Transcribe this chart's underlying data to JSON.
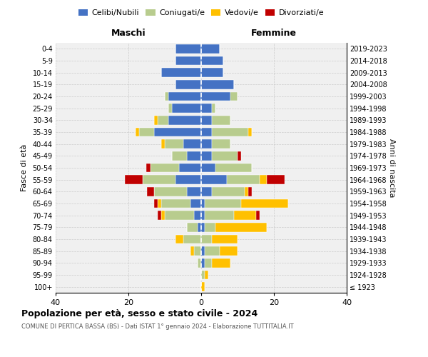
{
  "age_groups": [
    "100+",
    "95-99",
    "90-94",
    "85-89",
    "80-84",
    "75-79",
    "70-74",
    "65-69",
    "60-64",
    "55-59",
    "50-54",
    "45-49",
    "40-44",
    "35-39",
    "30-34",
    "25-29",
    "20-24",
    "15-19",
    "10-14",
    "5-9",
    "0-4"
  ],
  "birth_years": [
    "≤ 1923",
    "1924-1928",
    "1929-1933",
    "1934-1938",
    "1939-1943",
    "1944-1948",
    "1949-1953",
    "1954-1958",
    "1959-1963",
    "1964-1968",
    "1969-1973",
    "1974-1978",
    "1979-1983",
    "1984-1988",
    "1989-1993",
    "1994-1998",
    "1999-2003",
    "2004-2008",
    "2009-2013",
    "2014-2018",
    "2019-2023"
  ],
  "maschi": {
    "celibi": [
      0,
      0,
      0,
      0,
      0,
      1,
      2,
      3,
      4,
      7,
      6,
      4,
      5,
      13,
      9,
      8,
      9,
      7,
      11,
      7,
      7
    ],
    "coniugati": [
      0,
      0,
      1,
      2,
      5,
      3,
      8,
      8,
      9,
      9,
      8,
      4,
      5,
      4,
      3,
      1,
      1,
      0,
      0,
      0,
      0
    ],
    "vedovi": [
      0,
      0,
      0,
      1,
      2,
      0,
      1,
      1,
      0,
      0,
      0,
      0,
      1,
      1,
      1,
      0,
      0,
      0,
      0,
      0,
      0
    ],
    "divorziati": [
      0,
      0,
      0,
      0,
      0,
      0,
      1,
      1,
      2,
      5,
      1,
      0,
      0,
      0,
      0,
      0,
      0,
      0,
      0,
      0,
      0
    ]
  },
  "femmine": {
    "nubili": [
      0,
      0,
      1,
      1,
      0,
      1,
      1,
      1,
      3,
      7,
      4,
      3,
      3,
      3,
      3,
      3,
      8,
      9,
      6,
      6,
      5
    ],
    "coniugate": [
      0,
      1,
      2,
      4,
      3,
      3,
      8,
      10,
      9,
      9,
      10,
      7,
      5,
      10,
      5,
      1,
      2,
      0,
      0,
      0,
      0
    ],
    "vedove": [
      1,
      1,
      5,
      5,
      7,
      14,
      6,
      13,
      1,
      2,
      0,
      0,
      0,
      1,
      0,
      0,
      0,
      0,
      0,
      0,
      0
    ],
    "divorziate": [
      0,
      0,
      0,
      0,
      0,
      0,
      1,
      0,
      1,
      5,
      0,
      1,
      0,
      0,
      0,
      0,
      0,
      0,
      0,
      0,
      0
    ]
  },
  "colors": {
    "celibi_nubili": "#4472c4",
    "coniugati_e": "#b8cc8e",
    "vedovi_e": "#ffc000",
    "divorziati_e": "#c00000"
  },
  "xlim": 40,
  "title": "Popolazione per età, sesso e stato civile - 2024",
  "subtitle": "COMUNE DI PERTICA BASSA (BS) - Dati ISTAT 1° gennaio 2024 - Elaborazione TUTTITALIA.IT",
  "xlabel_maschi": "Maschi",
  "xlabel_femmine": "Femmine",
  "ylabel_left": "Fasce di età",
  "ylabel_right": "Anni di nascita",
  "legend_labels": [
    "Celibi/Nubili",
    "Coniugati/e",
    "Vedovi/e",
    "Divorziati/e"
  ],
  "bg_color": "#f0f0f0"
}
